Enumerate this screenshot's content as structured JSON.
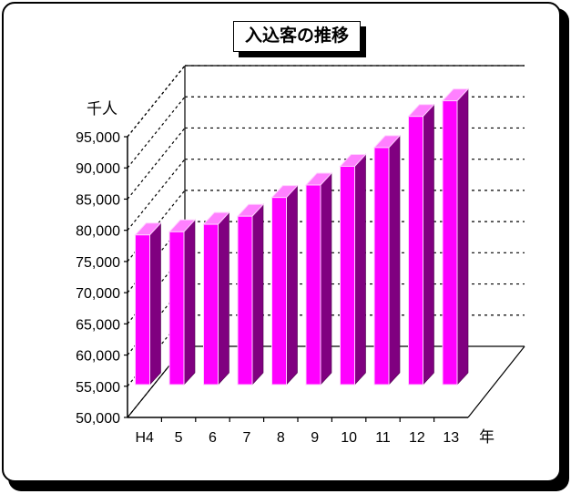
{
  "chart_data": {
    "type": "bar",
    "title": "入込客の推移",
    "ylabel": "千人",
    "xlabel": "年",
    "categories": [
      "H4",
      "5",
      "6",
      "7",
      "8",
      "9",
      "10",
      "11",
      "12",
      "13"
    ],
    "values": [
      74000,
      74500,
      75700,
      77000,
      80000,
      82000,
      85000,
      88000,
      93000,
      95500
    ],
    "ylim": [
      50000,
      95000
    ],
    "yticks": [
      "50,000",
      "55,000",
      "60,000",
      "65,000",
      "70,000",
      "75,000",
      "80,000",
      "85,000",
      "90,000",
      "95,000"
    ],
    "grid": true,
    "colors": {
      "front": "#ff00ff",
      "side": "#800080",
      "top": "#ff80ff",
      "edge": "#ffd0ff"
    }
  }
}
